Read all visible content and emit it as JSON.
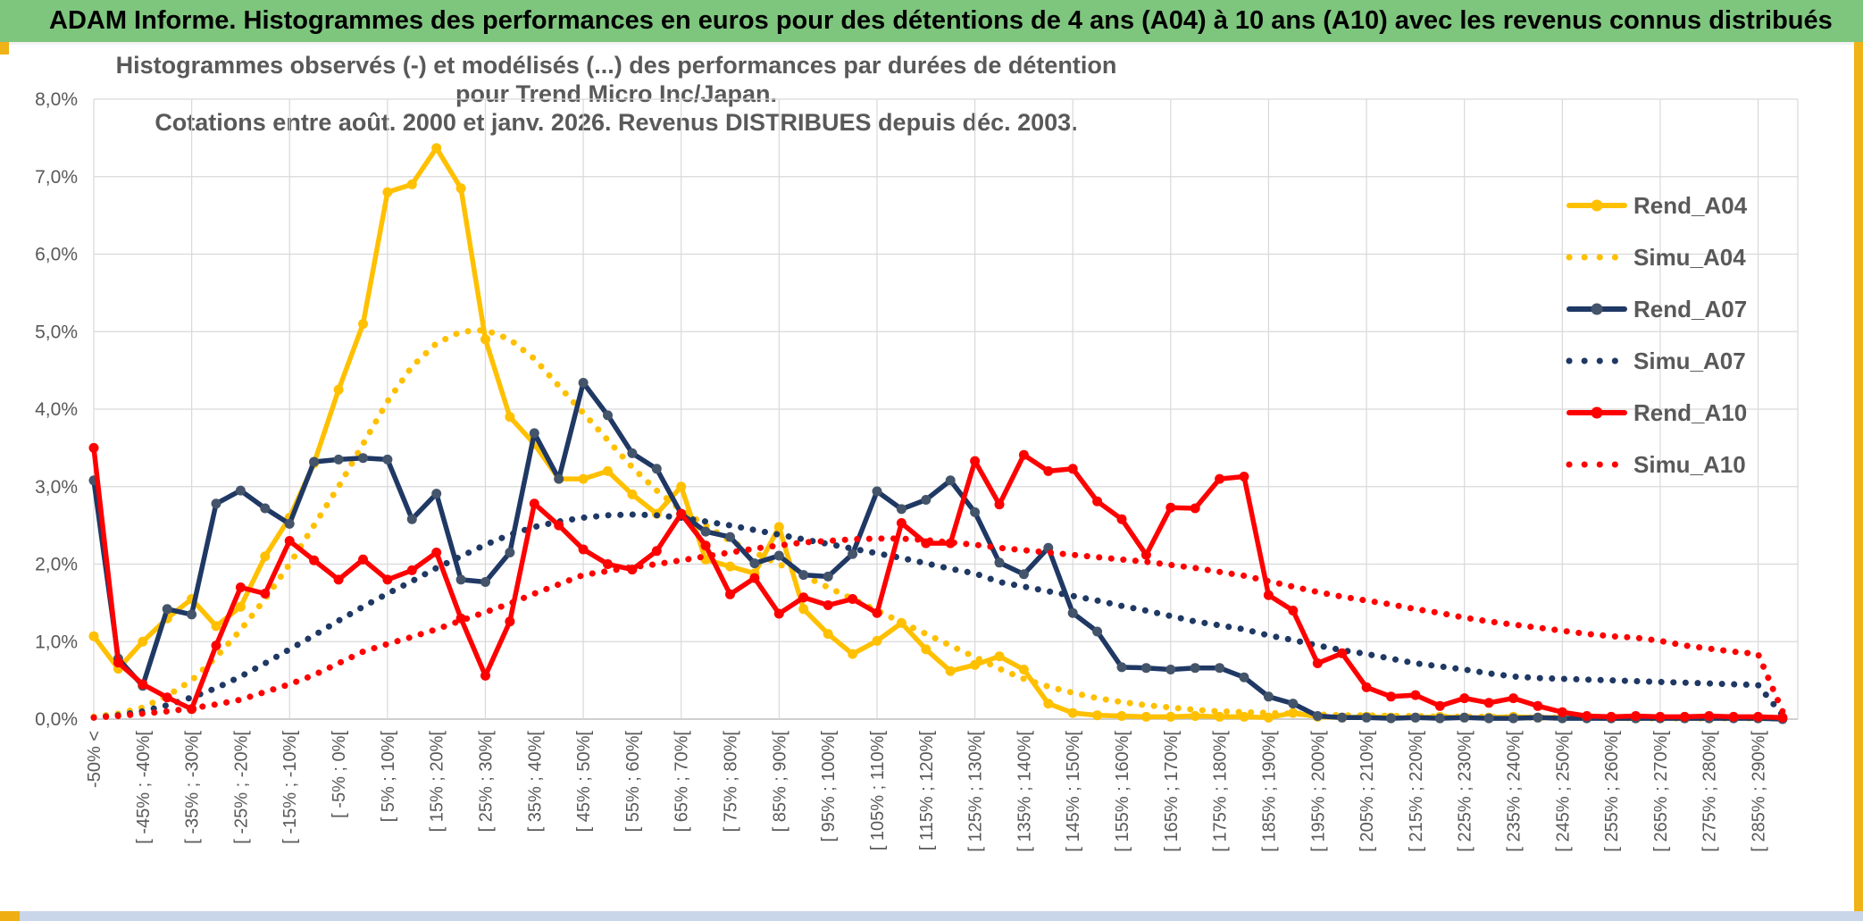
{
  "header": {
    "title": "ADAM Informe. Histogrammes des performances en euros pour des détentions de 4 ans (A04) à 10 ans (A10) avec les revenus connus distribués"
  },
  "chart": {
    "title_line1": "Histogrammes observés (-) et modélisés (...) des performances par durées de détention pour Trend Micro Inc/Japan.",
    "title_line2": "Cotations entre août. 2000 et janv. 2026. Revenus DISTRIBUES depuis déc. 2003."
  },
  "colors": {
    "header_green": "#7ec57e",
    "gold": "#FFC000",
    "navy": "#1F3864",
    "navy_marker": "#44546A",
    "red": "#FF0000",
    "grid": "#D9D9D9",
    "axis_text": "#595959",
    "edge_accent": "#efb217",
    "bottom_strip": "#c9d5e8"
  },
  "chart_data": {
    "type": "line",
    "grid": true,
    "legend_position": "right",
    "ylim": [
      0,
      0.08
    ],
    "y_ticks": [
      "8,0%",
      "7,0%",
      "6,0%",
      "5,0%",
      "4,0%",
      "3,0%",
      "2,0%",
      "1,0%",
      "0,0%"
    ],
    "y_tick_values": [
      8,
      7,
      6,
      5,
      4,
      3,
      2,
      1,
      0
    ],
    "categories": [
      "-50% <",
      "",
      "[ -45% ; -40%[",
      "",
      "[ -35% ; -30%[",
      "",
      "[ -25% ; -20%[",
      "",
      "[ -15% ; -10%[",
      "",
      "[ -5% ; 0%[",
      "",
      "[ 5% ; 10%[",
      "",
      "[ 15% ; 20%[",
      "",
      "[ 25% ; 30%[",
      "",
      "[ 35% ; 40%[",
      "",
      "[ 45% ; 50%[",
      "",
      "[ 55% ; 60%[",
      "",
      "[ 65% ; 70%[",
      "",
      "[ 75% ; 80%[",
      "",
      "[ 85% ; 90%[",
      "",
      "[ 95% ; 100%[",
      "",
      "[ 105% ; 110%[",
      "",
      "[ 115% ; 120%[",
      "",
      "[ 125% ; 130%[",
      "",
      "[ 135% ; 140%[",
      "",
      "[ 145% ; 150%[",
      "",
      "[ 155% ; 160%[",
      "",
      "[ 165% ; 170%[",
      "",
      "[ 175% ; 180%[",
      "",
      "[ 185% ; 190%[",
      "",
      "[ 195% ; 200%[",
      "",
      "[ 205% ; 210%[",
      "",
      "[ 215% ; 220%[",
      "",
      "[ 225% ; 230%[",
      "",
      "[ 235% ; 240%[",
      "",
      "[ 245% ; 250%[",
      "",
      "[ 255% ; 260%[",
      "",
      "[ 265% ; 270%[",
      "",
      "[ 275% ; 280%[",
      "",
      "[ 285% ; 290%[",
      ""
    ],
    "series": [
      {
        "name": "Rend_A04",
        "style": "solid",
        "color": "#FFC000",
        "marker_color": "#FFC000",
        "values": [
          1.07,
          0.65,
          1.0,
          1.3,
          1.55,
          1.2,
          1.45,
          2.1,
          2.6,
          3.3,
          4.25,
          5.1,
          6.8,
          6.9,
          7.37,
          6.85,
          4.9,
          3.9,
          3.55,
          3.1,
          3.1,
          3.2,
          2.9,
          2.65,
          3.0,
          2.06,
          1.97,
          1.88,
          2.48,
          1.42,
          1.1,
          0.84,
          1.01,
          1.24,
          0.9,
          0.62,
          0.7,
          0.81,
          0.64,
          0.2,
          0.08,
          0.05,
          0.04,
          0.03,
          0.03,
          0.04,
          0.03,
          0.03,
          0.02,
          0.08,
          0.03,
          0.02,
          0.03,
          0.02,
          0.02,
          0.03,
          0.02,
          0.02,
          0.03,
          0.02,
          0.02,
          0.02,
          0.01,
          0.01,
          0.02,
          0.01,
          0.01,
          0.02,
          0.01,
          0.01
        ]
      },
      {
        "name": "Simu_A04",
        "style": "dotted",
        "color": "#FFC000",
        "values": [
          0.03,
          0.07,
          0.15,
          0.3,
          0.5,
          0.8,
          1.15,
          1.55,
          2.0,
          2.5,
          3.0,
          3.55,
          4.1,
          4.55,
          4.85,
          5.0,
          5.02,
          4.9,
          4.65,
          4.3,
          3.95,
          3.6,
          3.25,
          2.95,
          2.7,
          2.5,
          2.3,
          2.15,
          2.0,
          1.85,
          1.7,
          1.55,
          1.4,
          1.25,
          1.1,
          0.95,
          0.8,
          0.65,
          0.52,
          0.42,
          0.34,
          0.27,
          0.22,
          0.18,
          0.15,
          0.12,
          0.1,
          0.09,
          0.08,
          0.07,
          0.06,
          0.05,
          0.05,
          0.04,
          0.04,
          0.03,
          0.03,
          0.03,
          0.02,
          0.02,
          0.02,
          0.02,
          0.02,
          0.01,
          0.01,
          0.01,
          0.01,
          0.01,
          0.01,
          0.01
        ]
      },
      {
        "name": "Rend_A07",
        "style": "solid",
        "color": "#1F3864",
        "marker_color": "#44546A",
        "values": [
          3.08,
          0.78,
          0.43,
          1.42,
          1.35,
          2.78,
          2.95,
          2.72,
          2.52,
          3.32,
          3.35,
          3.37,
          3.35,
          2.58,
          2.91,
          1.8,
          1.77,
          2.15,
          3.69,
          3.1,
          4.34,
          3.92,
          3.43,
          3.23,
          2.65,
          2.42,
          2.35,
          2.01,
          2.11,
          1.86,
          1.84,
          2.13,
          2.94,
          2.71,
          2.83,
          3.08,
          2.67,
          2.02,
          1.87,
          2.21,
          1.37,
          1.13,
          0.67,
          0.66,
          0.64,
          0.66,
          0.66,
          0.54,
          0.29,
          0.2,
          0.04,
          0.02,
          0.02,
          0.01,
          0.02,
          0.01,
          0.02,
          0.01,
          0.01,
          0.02,
          0.01,
          0.01,
          0.01,
          0.01,
          0.01,
          0.01,
          0.01,
          0.01,
          0.01,
          0.0
        ]
      },
      {
        "name": "Simu_A07",
        "style": "dotted",
        "color": "#1F3864",
        "values": [
          0.02,
          0.05,
          0.1,
          0.18,
          0.28,
          0.4,
          0.55,
          0.72,
          0.9,
          1.08,
          1.27,
          1.45,
          1.62,
          1.78,
          1.95,
          2.1,
          2.25,
          2.38,
          2.48,
          2.55,
          2.6,
          2.63,
          2.64,
          2.63,
          2.6,
          2.55,
          2.5,
          2.44,
          2.38,
          2.32,
          2.26,
          2.2,
          2.14,
          2.08,
          2.01,
          1.94,
          1.88,
          1.77,
          1.71,
          1.65,
          1.59,
          1.53,
          1.46,
          1.4,
          1.33,
          1.26,
          1.21,
          1.16,
          1.08,
          1.02,
          0.95,
          0.89,
          0.84,
          0.78,
          0.72,
          0.68,
          0.64,
          0.59,
          0.55,
          0.53,
          0.52,
          0.51,
          0.5,
          0.49,
          0.48,
          0.47,
          0.46,
          0.45,
          0.44,
          0.05
        ]
      },
      {
        "name": "Rend_A10",
        "style": "solid",
        "color": "#FF0000",
        "marker_color": "#FF0000",
        "values": [
          3.5,
          0.73,
          0.45,
          0.28,
          0.13,
          0.95,
          1.7,
          1.62,
          2.3,
          2.05,
          1.8,
          2.06,
          1.8,
          1.92,
          2.15,
          1.3,
          0.56,
          1.26,
          2.78,
          2.5,
          2.19,
          2.0,
          1.93,
          2.17,
          2.65,
          2.24,
          1.61,
          1.82,
          1.36,
          1.57,
          1.47,
          1.55,
          1.37,
          2.53,
          2.27,
          2.27,
          3.33,
          2.77,
          3.41,
          3.2,
          3.23,
          2.81,
          2.58,
          2.12,
          2.73,
          2.72,
          3.1,
          3.13,
          1.6,
          1.4,
          0.72,
          0.85,
          0.41,
          0.29,
          0.31,
          0.17,
          0.27,
          0.21,
          0.27,
          0.17,
          0.09,
          0.04,
          0.03,
          0.04,
          0.03,
          0.03,
          0.04,
          0.03,
          0.03,
          0.02
        ]
      },
      {
        "name": "Simu_A10",
        "style": "dotted",
        "color": "#FF0000",
        "values": [
          0.02,
          0.04,
          0.07,
          0.1,
          0.14,
          0.19,
          0.25,
          0.35,
          0.45,
          0.57,
          0.72,
          0.87,
          0.97,
          1.06,
          1.16,
          1.27,
          1.38,
          1.49,
          1.62,
          1.74,
          1.86,
          1.91,
          1.96,
          2.0,
          2.05,
          2.1,
          2.15,
          2.2,
          2.24,
          2.28,
          2.3,
          2.32,
          2.33,
          2.33,
          2.31,
          2.28,
          2.25,
          2.21,
          2.18,
          2.15,
          2.12,
          2.09,
          2.06,
          2.03,
          1.99,
          1.95,
          1.9,
          1.85,
          1.78,
          1.71,
          1.64,
          1.58,
          1.53,
          1.48,
          1.42,
          1.37,
          1.31,
          1.26,
          1.22,
          1.18,
          1.14,
          1.1,
          1.07,
          1.05,
          1.01,
          0.95,
          0.91,
          0.87,
          0.84,
          0.1
        ]
      }
    ],
    "legend": [
      "Rend_A04",
      "Simu_A04",
      "Rend_A07",
      "Simu_A07",
      "Rend_A10",
      "Simu_A10"
    ]
  }
}
